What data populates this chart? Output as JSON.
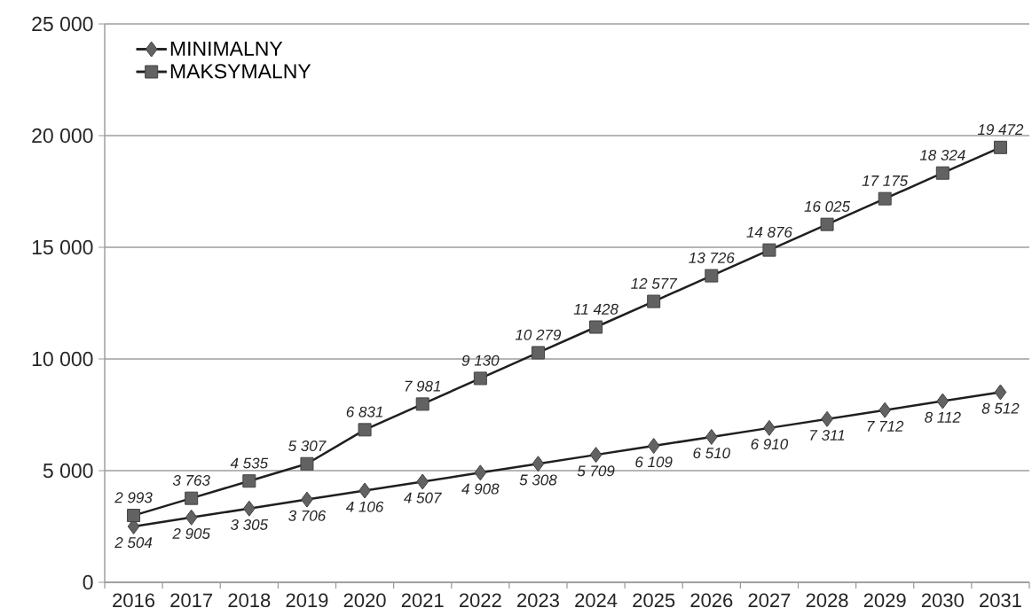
{
  "chart_data": {
    "type": "line",
    "categories": [
      "2016",
      "2017",
      "2018",
      "2019",
      "2020",
      "2021",
      "2022",
      "2023",
      "2024",
      "2025",
      "2026",
      "2027",
      "2028",
      "2029",
      "2030",
      "2031"
    ],
    "series": [
      {
        "name": "MINIMALNY",
        "color": "#1f1f1f",
        "marker": "diamond",
        "values": [
          2504,
          2905,
          3305,
          3706,
          4106,
          4507,
          4908,
          5308,
          5709,
          6109,
          6510,
          6910,
          7311,
          7712,
          8112,
          8512
        ],
        "value_labels": [
          "2 504",
          "2 905",
          "3 305",
          "3 706",
          "4 106",
          "4 507",
          "4 908",
          "5 308",
          "5 709",
          "6 109",
          "6 510",
          "6 910",
          "7 311",
          "7 712",
          "8 112",
          "8 512"
        ]
      },
      {
        "name": "MAKSYMALNY",
        "color": "#1f1f1f",
        "marker": "square",
        "values": [
          2993,
          3763,
          4535,
          5307,
          6831,
          7981,
          9130,
          10279,
          11428,
          12577,
          13726,
          14876,
          16025,
          17175,
          18324,
          19472
        ],
        "value_labels": [
          "2 993",
          "3 763",
          "4 535",
          "5 307",
          "6 831",
          "7 981",
          "9 130",
          "10 279",
          "11 428",
          "12 577",
          "13 726",
          "14 876",
          "16 025",
          "17 175",
          "18 324",
          "19 472"
        ]
      }
    ],
    "ylim": [
      0,
      25000
    ],
    "yticks": [
      0,
      {
        "value": 5000,
        "label": "5 000"
      },
      {
        "value": 10000,
        "label": "10 000"
      },
      {
        "value": 15000,
        "label": "15 000"
      },
      {
        "value": 20000,
        "label": "20 000"
      },
      {
        "value": 25000,
        "label": "25 000"
      }
    ],
    "grid": "y",
    "legend": "top left",
    "line_style": "solid"
  }
}
